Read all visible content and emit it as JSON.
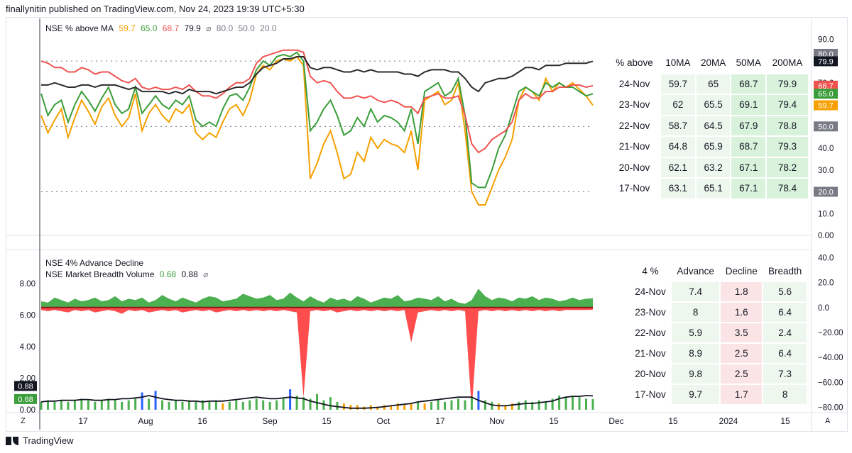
{
  "header": {
    "text": "finallynitin published on TradingView.com, Nov 24, 2023 19:39 UTC+5:30"
  },
  "footer": {
    "brand": "TradingView",
    "left_btn": "Z",
    "right_btn": "A"
  },
  "colors": {
    "ma10": "#f5a000",
    "ma20": "#3a9d3a",
    "ma50": "#ef5350",
    "ma200": "#2b2b2b",
    "advance": "#4caf50",
    "decline": "#ff4d4d",
    "table_green": "#d9f2dc",
    "table_light": "#eef7ee",
    "table_red": "#fbe4e6"
  },
  "legend1": {
    "title": "NSE % above MA",
    "v10": "59.7",
    "v20": "65.0",
    "v50": "68.7",
    "v200": "79.9",
    "symbol": "⌀",
    "h1": "80.0",
    "h2": "50.0",
    "h3": "20.0"
  },
  "legend2": {
    "title1": "NSE 4% Advance Decline",
    "title2": "NSE Market Breadth Volume",
    "val1": "0.68",
    "val2": "0.88",
    "symbol": "⌀"
  },
  "table1": {
    "headers": [
      "% above",
      "10MA",
      "20MA",
      "50MA",
      "200MA"
    ],
    "rows": [
      [
        "24-Nov",
        "59.7",
        "65",
        "68.7",
        "79.9"
      ],
      [
        "23-Nov",
        "62",
        "65.5",
        "69.1",
        "79.4"
      ],
      [
        "22-Nov",
        "58.7",
        "64.5",
        "67.9",
        "78.8"
      ],
      [
        "21-Nov",
        "64.8",
        "65.9",
        "68.7",
        "79.3"
      ],
      [
        "20-Nov",
        "62.1",
        "63.2",
        "67.1",
        "78.2"
      ],
      [
        "17-Nov",
        "63.1",
        "65.1",
        "67.1",
        "78.4"
      ]
    ]
  },
  "table2": {
    "headers": [
      "4 %",
      "Advance",
      "Decline",
      "Breadth"
    ],
    "rows": [
      [
        "24-Nov",
        "7.4",
        "1.8",
        "5.6"
      ],
      [
        "23-Nov",
        "8",
        "1.6",
        "6.4"
      ],
      [
        "22-Nov",
        "5.9",
        "3.5",
        "2.4"
      ],
      [
        "21-Nov",
        "8.9",
        "2.5",
        "6.4"
      ],
      [
        "20-Nov",
        "9.8",
        "2.5",
        "7.3"
      ],
      [
        "17-Nov",
        "9.7",
        "1.7",
        "8"
      ]
    ]
  },
  "chart_data": [
    {
      "type": "line",
      "title": "NSE % above MA",
      "ylim": [
        0,
        95
      ],
      "y_ticks": [
        "90.0",
        "70.0",
        "60.0",
        "40.0",
        "30.0",
        "10.0",
        "0.00"
      ],
      "hlines": [
        80,
        50,
        20
      ],
      "y_badges": [
        {
          "label": "80.0",
          "value": 83.3,
          "color": "#787b86"
        },
        {
          "label": "79.9",
          "value": 79.9,
          "color": "#131722"
        },
        {
          "label": "68.7",
          "value": 68.7,
          "color": "#ef5350"
        },
        {
          "label": "65.0",
          "value": 65.0,
          "color": "#3a9d3a"
        },
        {
          "label": "59.7",
          "value": 59.7,
          "color": "#f5a000"
        },
        {
          "label": "50.0",
          "value": 50.0,
          "color": "#787b86"
        },
        {
          "label": "20.0",
          "value": 20.0,
          "color": "#787b86"
        }
      ],
      "x_ticks": [
        "17",
        "Aug",
        "16",
        "Sep",
        "15",
        "Oct",
        "17",
        "Nov",
        "15",
        "Dec",
        "15",
        "2024",
        "15"
      ],
      "series": [
        {
          "name": "10MA",
          "color": "#f5a000",
          "values": [
            55,
            47,
            53,
            58,
            45,
            54,
            62,
            57,
            51,
            59,
            63,
            55,
            50,
            54,
            65,
            48,
            56,
            60,
            55,
            52,
            58,
            56,
            60,
            47,
            44,
            47,
            45,
            52,
            58,
            60,
            55,
            62,
            74,
            78,
            76,
            80,
            81,
            80,
            82,
            78,
            26,
            33,
            42,
            48,
            38,
            26,
            28,
            38,
            34,
            45,
            40,
            44,
            42,
            41,
            38,
            48,
            30,
            62,
            64,
            66,
            60,
            62,
            70,
            48,
            20,
            14,
            14,
            22,
            30,
            36,
            44,
            62,
            68,
            66,
            62,
            72,
            66,
            70,
            68,
            70,
            67,
            64,
            59.7
          ]
        },
        {
          "name": "20MA",
          "color": "#3a9d3a",
          "values": [
            65,
            55,
            60,
            62,
            52,
            60,
            66,
            62,
            57,
            63,
            68,
            60,
            56,
            58,
            68,
            56,
            60,
            64,
            60,
            58,
            62,
            60,
            64,
            53,
            50,
            52,
            50,
            58,
            64,
            65,
            62,
            68,
            76,
            80,
            78,
            82,
            83,
            82,
            84,
            80,
            48,
            52,
            58,
            62,
            55,
            46,
            48,
            54,
            50,
            58,
            52,
            55,
            54,
            52,
            48,
            58,
            42,
            66,
            68,
            70,
            64,
            66,
            72,
            55,
            24,
            22,
            22,
            30,
            40,
            46,
            56,
            66,
            68,
            66,
            64,
            70,
            68,
            70,
            68,
            68,
            66,
            64,
            65
          ]
        },
        {
          "name": "50MA",
          "color": "#ef5350",
          "values": [
            80,
            79,
            77,
            77,
            75,
            75,
            77,
            76,
            74,
            75,
            75,
            73,
            71,
            70,
            72,
            68,
            67,
            68,
            67,
            67,
            68,
            67,
            69,
            66,
            64,
            64,
            63,
            65,
            68,
            70,
            70,
            72,
            79,
            82,
            83,
            84,
            85,
            85,
            85,
            84,
            73,
            70,
            71,
            70,
            66,
            63,
            63,
            64,
            63,
            64,
            62,
            61,
            62,
            61,
            59,
            59,
            56,
            63,
            64,
            65,
            63,
            63,
            64,
            55,
            42,
            38,
            40,
            44,
            46,
            48,
            52,
            62,
            65,
            63,
            63,
            66,
            66,
            68,
            68,
            69,
            69,
            68,
            68.7
          ]
        },
        {
          "name": "200MA",
          "color": "#2b2b2b",
          "values": [
            69,
            69,
            70,
            69,
            68,
            68,
            69,
            69,
            68,
            69,
            69,
            69,
            68,
            67,
            68,
            66,
            66,
            66,
            66,
            65,
            66,
            65,
            67,
            66,
            66,
            66,
            65,
            66,
            67,
            68,
            68,
            70,
            74,
            77,
            78,
            79,
            81,
            81,
            82,
            82,
            77,
            76,
            77,
            77,
            76,
            75,
            75,
            76,
            75,
            76,
            75,
            75,
            75,
            75,
            74,
            74,
            73,
            75,
            76,
            76,
            76,
            75,
            75,
            72,
            68,
            66,
            70,
            71,
            72,
            72,
            73,
            75,
            77,
            77,
            76,
            78,
            78,
            78,
            79,
            79,
            79,
            79,
            79.9
          ]
        }
      ]
    },
    {
      "type": "area",
      "title": "NSE 4% Advance Decline",
      "ylim": [
        -83,
        43
      ],
      "y_ticks": [
        "40.0",
        "20.0",
        "0.0",
        "−20.00",
        "−40.00",
        "−60.00",
        "−80.00"
      ],
      "series": [
        {
          "name": "Advance",
          "color": "#4caf50",
          "values": [
            5,
            4,
            8,
            6,
            4,
            7,
            5,
            6,
            8,
            5,
            6,
            9,
            5,
            7,
            6,
            8,
            4,
            6,
            10,
            7,
            5,
            8,
            6,
            4,
            7,
            9,
            8,
            5,
            6,
            7,
            11,
            9,
            7,
            8,
            10,
            6,
            7,
            12,
            8,
            5,
            9,
            6,
            4,
            8,
            6,
            7,
            5,
            9,
            7,
            4,
            6,
            8,
            7,
            10,
            5,
            6,
            8,
            7,
            6,
            9,
            5,
            7,
            4,
            3,
            6,
            15,
            9,
            6,
            8,
            7,
            5,
            8,
            7,
            9,
            6,
            8,
            7,
            5,
            6,
            8,
            6,
            7,
            7.4
          ]
        },
        {
          "name": "Decline",
          "color": "#ff4d4d",
          "values": [
            -2,
            -3,
            -2,
            -3,
            -4,
            -2,
            -3,
            -2,
            -4,
            -3,
            -2,
            -3,
            -5,
            -2,
            -3,
            -2,
            -4,
            -3,
            -2,
            -3,
            -2,
            -4,
            -3,
            -2,
            -3,
            -2,
            -4,
            -3,
            -2,
            -3,
            -2,
            -3,
            -2,
            -3,
            -2,
            -3,
            -2,
            -3,
            -4,
            -72,
            -3,
            -2,
            -3,
            -2,
            -4,
            -3,
            -2,
            -3,
            -2,
            -3,
            -2,
            -3,
            -2,
            -3,
            -2,
            -28,
            -4,
            -3,
            -2,
            -3,
            -2,
            -3,
            -2,
            -3,
            -82,
            -3,
            -2,
            -3,
            -2,
            -3,
            -2,
            -3,
            -2,
            -3,
            -2,
            -3,
            -2,
            -3,
            -2,
            -2,
            -2,
            -2,
            -1.8
          ]
        }
      ]
    },
    {
      "type": "bar",
      "title": "NSE Market Breadth Volume",
      "ylim": [
        0,
        9
      ],
      "y_ticks": [
        "8.00",
        "6.00",
        "4.00",
        "2.00",
        "0.00"
      ],
      "y_badges": [
        {
          "label": "0.88",
          "value": 0.88,
          "color": "#131722"
        },
        {
          "label": "0.68",
          "value": 0.68,
          "color": "#3a9d3a"
        }
      ],
      "series": [
        {
          "name": "Volume",
          "values": [
            0.5,
            0.6,
            0.5,
            0.6,
            0.5,
            0.6,
            0.7,
            0.6,
            0.5,
            0.6,
            0.7,
            0.6,
            0.5,
            0.6,
            0.7,
            1.1,
            0.7,
            1.2,
            0.6,
            0.5,
            0.6,
            0.5,
            0.6,
            0.5,
            0.6,
            0.5,
            0.6,
            0.4,
            0.5,
            0.6,
            0.5,
            0.6,
            0.7,
            0.6,
            0.5,
            0.6,
            0.7,
            1.3,
            0.9,
            0.8,
            0.7,
            1.0,
            0.6,
            0.8,
            0.5,
            0.4,
            0.3,
            0.3,
            0.2,
            0.3,
            0.2,
            0.3,
            0.3,
            0.4,
            0.3,
            0.4,
            0.5,
            0.4,
            0.5,
            0.6,
            0.5,
            0.6,
            0.7,
            0.6,
            0.8,
            1.2,
            0.6,
            0.5,
            0.4,
            0.3,
            0.4,
            0.5,
            0.6,
            0.5,
            0.6,
            0.5,
            0.7,
            0.9,
            0.8,
            0.9,
            0.8,
            0.7,
            0.68
          ]
        },
        {
          "name": "Breadth",
          "values": [
            0.5,
            0.55,
            0.55,
            0.6,
            0.6,
            0.6,
            0.65,
            0.65,
            0.6,
            0.6,
            0.65,
            0.65,
            0.7,
            0.7,
            0.75,
            0.8,
            0.9,
            0.8,
            0.7,
            0.65,
            0.6,
            0.6,
            0.55,
            0.55,
            0.5,
            0.55,
            0.55,
            0.55,
            0.6,
            0.65,
            0.7,
            0.75,
            0.8,
            0.75,
            0.7,
            0.7,
            0.75,
            0.8,
            0.75,
            0.7,
            0.55,
            0.45,
            0.35,
            0.25,
            0.2,
            0.15,
            0.1,
            0.1,
            0.1,
            0.12,
            0.15,
            0.2,
            0.25,
            0.3,
            0.35,
            0.4,
            0.5,
            0.55,
            0.6,
            0.65,
            0.7,
            0.75,
            0.8,
            0.8,
            0.8,
            0.6,
            0.45,
            0.3,
            0.25,
            0.25,
            0.3,
            0.35,
            0.4,
            0.4,
            0.45,
            0.5,
            0.55,
            0.7,
            0.8,
            0.85,
            0.85,
            0.9,
            0.88
          ]
        }
      ]
    }
  ]
}
